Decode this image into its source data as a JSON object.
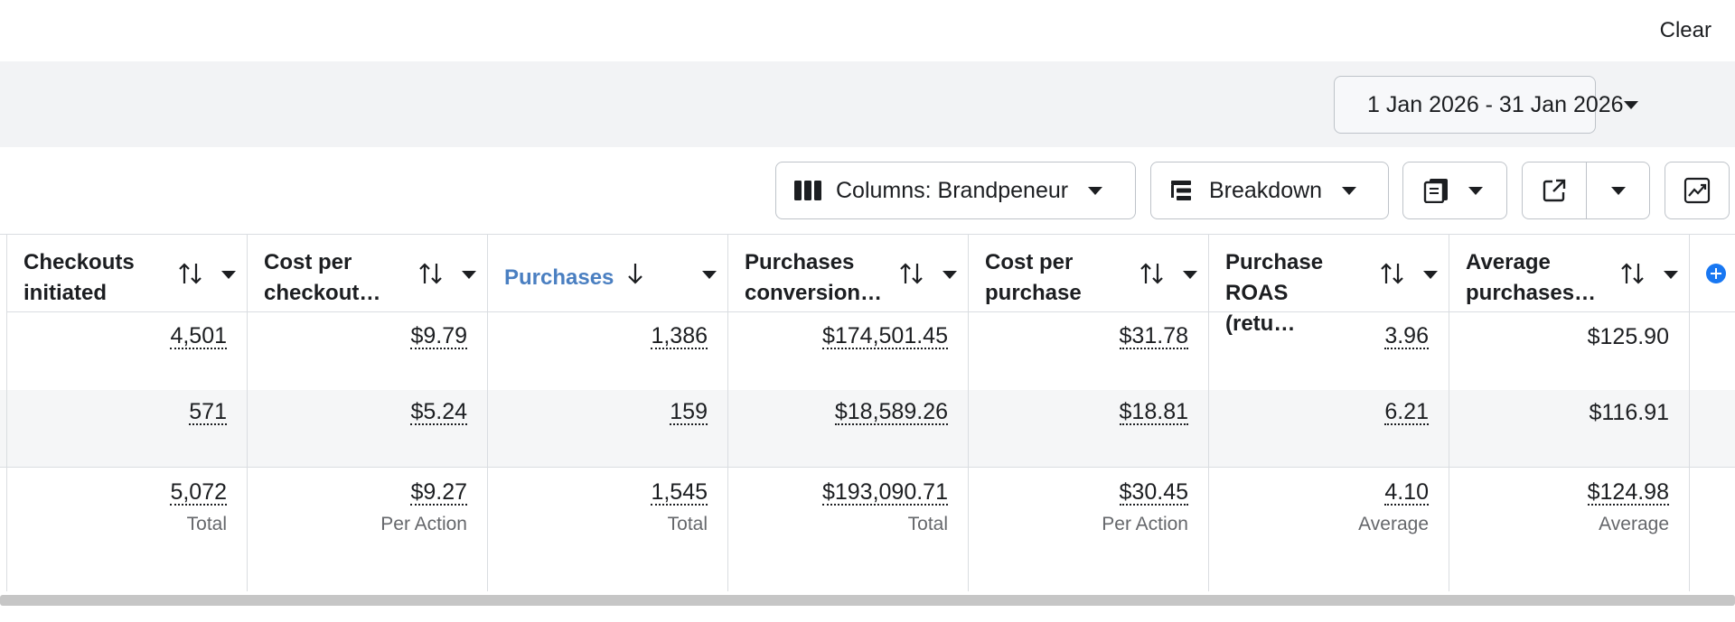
{
  "filter_bar": {
    "clear_label": "Clear"
  },
  "date_range": {
    "label": "1 Jan 2026 - 31 Jan 2026"
  },
  "toolbar": {
    "columns_label": "Columns: Brandpeneur",
    "breakdown_label": "Breakdown"
  },
  "icons": {
    "calendar": "calendar-icon",
    "columns": "columns-icon",
    "breakdown": "breakdown-icon",
    "reports": "reports-icon",
    "export": "export-icon",
    "chart": "chart-icon",
    "sort": "sort-icon",
    "add_column": "add-column-icon"
  },
  "colors": {
    "accent": "#4a7fc1",
    "brand": "#1877f2",
    "row_shade": "#f5f6f7"
  },
  "table": {
    "columns": [
      {
        "title": "Checkouts\ninitiated",
        "row1": "4,501",
        "row2": "571",
        "total": "5,072",
        "total_label": "Total"
      },
      {
        "title": "Cost per\ncheckout…",
        "row1": "$9.79",
        "row2": "$5.24",
        "total": "$9.27",
        "total_label": "Per Action"
      },
      {
        "title": "Purchases",
        "row1": "1,386",
        "row2": "159",
        "total": "1,545",
        "total_label": "Total",
        "sorted": "descending"
      },
      {
        "title": "Purchases\nconversion…",
        "row1": "$174,501.45",
        "row2": "$18,589.26",
        "total": "$193,090.71",
        "total_label": "Total"
      },
      {
        "title": "Cost per\npurchase",
        "row1": "$31.78",
        "row2": "$18.81",
        "total": "$30.45",
        "total_label": "Per Action"
      },
      {
        "title": "Purchase\nROAS (retu…",
        "row1": "3.96",
        "row2": "6.21",
        "total": "4.10",
        "total_label": "Average"
      },
      {
        "title": "Average\npurchases…",
        "row1": "$125.90",
        "row2": "$116.91",
        "total": "$124.98",
        "total_label": "Average"
      }
    ]
  }
}
